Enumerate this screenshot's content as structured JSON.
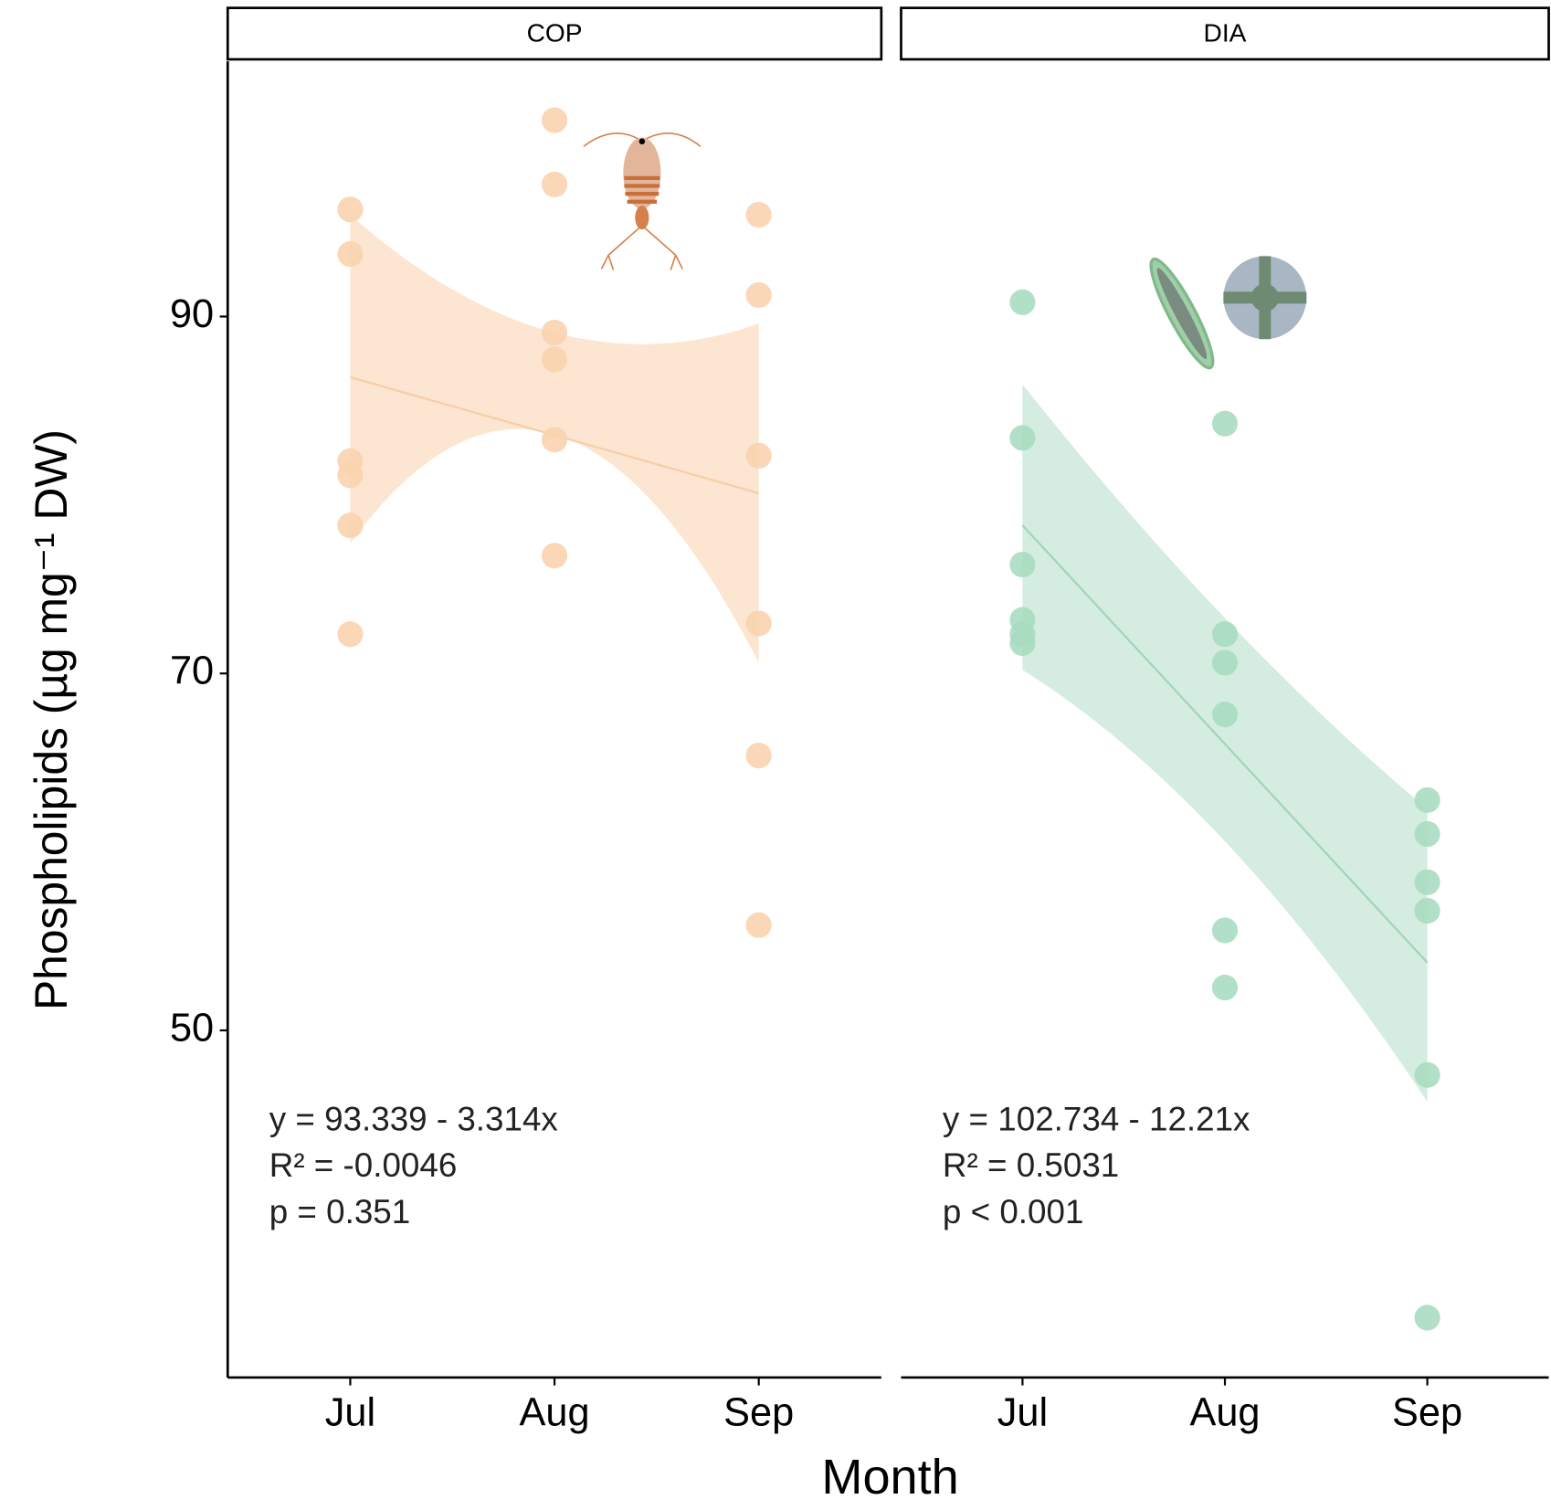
{
  "chart_data": [
    {
      "type": "scatter",
      "title": "COP",
      "ylabel": "Phospholipids (µg mg⁻¹ DW)",
      "xlabel": "Month",
      "categories": [
        "Jul",
        "Aug",
        "Sep"
      ],
      "values": [
        [
          96.0,
          93.5,
          81.9,
          81.1,
          78.3,
          72.2
        ],
        [
          101.0,
          97.4,
          89.1,
          87.6,
          83.1,
          76.6
        ],
        [
          95.7,
          91.2,
          82.2,
          72.8,
          65.4,
          55.9
        ]
      ],
      "fit": [
        86.6,
        83.35,
        80.1
      ],
      "band_upper": [
        95.7,
        89.1,
        89.6
      ],
      "band_lower": [
        77.3,
        83.4,
        70.6
      ],
      "color": "#f9d3ae",
      "band_color": "#fbe2c9",
      "line_color": "#f7cda5",
      "annotations": [
        "y = 93.339 - 3.314x",
        "R² = -0.0046",
        "p = 0.351"
      ],
      "ylim": [
        30.55,
        104.3
      ],
      "yticks": [
        50,
        70,
        90
      ]
    },
    {
      "type": "scatter",
      "title": "DIA",
      "categories": [
        "Jul",
        "Aug",
        "Sep"
      ],
      "values": [
        [
          90.8,
          83.2,
          76.1,
          73.0,
          72.2,
          71.7
        ],
        [
          84.0,
          72.2,
          70.6,
          67.7,
          55.6,
          52.4
        ],
        [
          62.9,
          61.0,
          58.3,
          56.7,
          47.5,
          33.9
        ]
      ],
      "fit": [
        78.3,
        66.05,
        53.8
      ],
      "band_upper": [
        86.2,
        73.1,
        62.4
      ],
      "band_lower": [
        70.2,
        60.6,
        46.0
      ],
      "color": "#a8dcc1",
      "band_color": "#cdeadb",
      "line_color": "#a2d3b9",
      "annotations": [
        "y = 102.734 - 12.21x",
        "R² = 0.5031",
        "p < 0.001"
      ],
      "ylim": [
        30.55,
        104.3
      ]
    }
  ]
}
